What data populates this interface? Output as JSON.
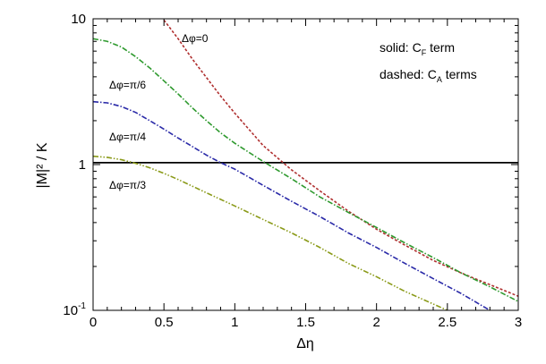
{
  "chart_data": {
    "type": "line",
    "title": "",
    "xlabel": "Δη",
    "ylabel": "|M|² / K",
    "xlim": [
      0,
      3
    ],
    "ylim": [
      0.1,
      10
    ],
    "yscale": "log",
    "x_ticks": [
      0,
      0.5,
      1,
      1.5,
      2,
      2.5,
      3
    ],
    "x_tick_labels": [
      "0",
      "0.5",
      "1",
      "1.5",
      "2",
      "2.5",
      "3"
    ],
    "y_ticks": [
      0.1,
      1,
      10
    ],
    "y_tick_labels": [
      {
        "base": "10",
        "exp": "-1"
      },
      {
        "base": "1",
        "exp": ""
      },
      {
        "base": "10",
        "exp": ""
      }
    ],
    "legend": {
      "solid": {
        "prefix": "solid: C",
        "sub": "F",
        "suffix": " term"
      },
      "dashed": {
        "prefix": "dashed: C",
        "sub": "A",
        "suffix": " terms"
      }
    },
    "series": [
      {
        "name": "C_F term",
        "style": "solid",
        "color": "#000000",
        "label": "",
        "x": [
          0,
          3
        ],
        "y": [
          1.03,
          1.03
        ]
      },
      {
        "name": "Δφ=0",
        "style": "dashed",
        "color": "#b03030",
        "label": "Δφ=0",
        "x": [
          0.5,
          0.6,
          0.7,
          0.8,
          0.9,
          1.0,
          1.2,
          1.4,
          1.6,
          1.8,
          2.0,
          2.2,
          2.4,
          2.6,
          2.8,
          3.0
        ],
        "y": [
          9.8,
          7.3,
          5.3,
          3.95,
          2.95,
          2.25,
          1.35,
          0.92,
          0.66,
          0.48,
          0.36,
          0.28,
          0.22,
          0.18,
          0.15,
          0.125
        ]
      },
      {
        "name": "Δφ=π/6",
        "style": "dash-dot",
        "color": "#2f9a2f",
        "label": "Δφ=π/6",
        "x": [
          0,
          0.1,
          0.2,
          0.3,
          0.4,
          0.5,
          0.6,
          0.7,
          0.8,
          0.9,
          1.0,
          1.2,
          1.4,
          1.6,
          1.8,
          2.0,
          2.2,
          2.4,
          2.6,
          2.8,
          3.0
        ],
        "y": [
          7.3,
          7.0,
          6.4,
          5.5,
          4.6,
          3.75,
          3.05,
          2.45,
          2.0,
          1.65,
          1.4,
          1.05,
          0.8,
          0.6,
          0.47,
          0.37,
          0.29,
          0.23,
          0.18,
          0.145,
          0.115
        ]
      },
      {
        "name": "Δφ=π/4",
        "style": "dash-dot",
        "color": "#2a2aa8",
        "label": "Δφ=π/4",
        "x": [
          0,
          0.1,
          0.2,
          0.3,
          0.4,
          0.5,
          0.6,
          0.7,
          0.8,
          0.9,
          1.0,
          1.2,
          1.4,
          1.6,
          1.8,
          2.0,
          2.2,
          2.4,
          2.6,
          2.8
        ],
        "y": [
          2.7,
          2.65,
          2.5,
          2.28,
          2.0,
          1.75,
          1.52,
          1.33,
          1.16,
          1.03,
          0.93,
          0.72,
          0.56,
          0.44,
          0.34,
          0.27,
          0.21,
          0.165,
          0.13,
          0.1
        ]
      },
      {
        "name": "Δφ=π/3",
        "style": "dash-dot-dot",
        "color": "#8a9a18",
        "label": "Δφ=π/3",
        "x": [
          0,
          0.1,
          0.2,
          0.3,
          0.4,
          0.5,
          0.6,
          0.8,
          1.0,
          1.2,
          1.4,
          1.6,
          1.8,
          2.0,
          2.2,
          2.5
        ],
        "y": [
          1.14,
          1.12,
          1.08,
          1.02,
          0.95,
          0.87,
          0.79,
          0.64,
          0.52,
          0.42,
          0.34,
          0.27,
          0.21,
          0.17,
          0.135,
          0.1
        ]
      }
    ],
    "annotations": [
      "Δφ=0",
      "Δφ=π/6",
      "Δφ=π/4",
      "Δφ=π/3"
    ]
  }
}
